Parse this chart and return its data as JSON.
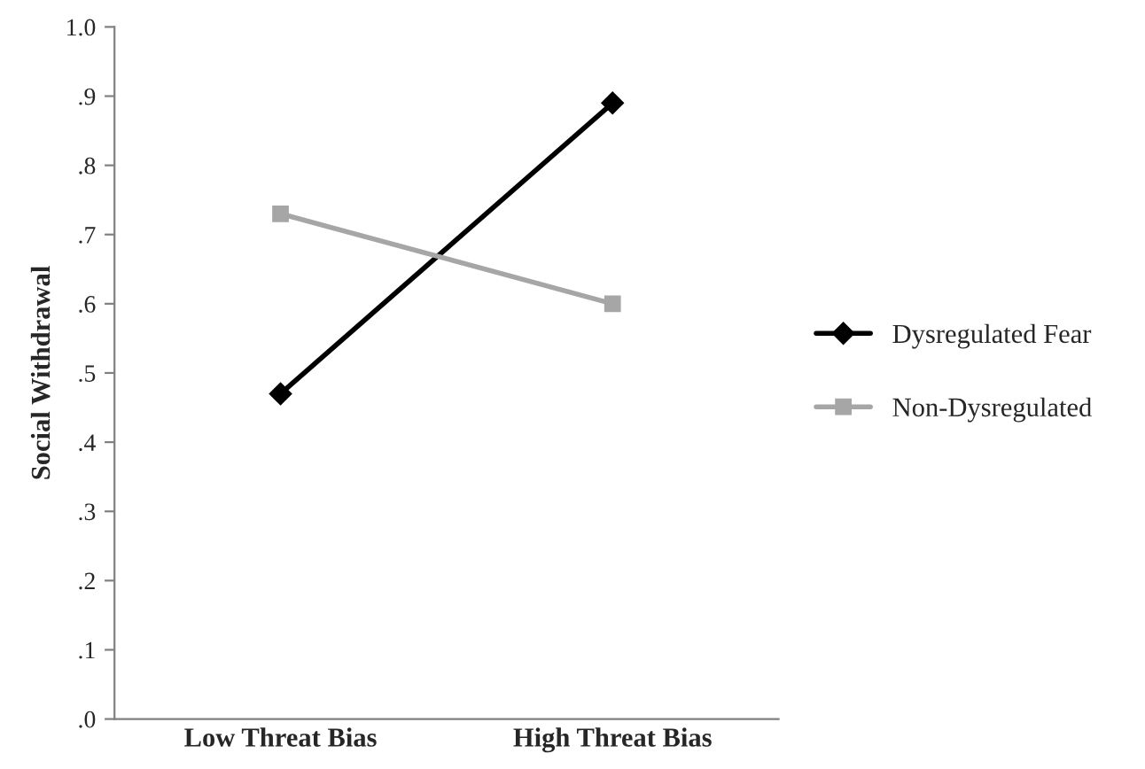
{
  "chart_data": {
    "type": "line",
    "ylabel": "Social Withdrawal",
    "categories": [
      "Low Threat Bias",
      "High Threat Bias"
    ],
    "series": [
      {
        "name": "Dysregulated Fear",
        "color": "#000000",
        "marker": "diamond",
        "values": [
          0.47,
          0.89
        ]
      },
      {
        "name": "Non-Dysregulated",
        "color": "#a6a6a6",
        "marker": "square",
        "values": [
          0.73,
          0.6
        ]
      }
    ],
    "ylim": [
      0,
      1
    ],
    "yticks": [
      {
        "value": 0,
        "label": ".0"
      },
      {
        "value": 0.1,
        "label": ".1"
      },
      {
        "value": 0.2,
        "label": ".2"
      },
      {
        "value": 0.3,
        "label": ".3"
      },
      {
        "value": 0.4,
        "label": ".4"
      },
      {
        "value": 0.5,
        "label": ".5"
      },
      {
        "value": 0.6,
        "label": ".6"
      },
      {
        "value": 0.7,
        "label": ".7"
      },
      {
        "value": 0.8,
        "label": ".8"
      },
      {
        "value": 0.9,
        "label": ".9"
      },
      {
        "value": 1.0,
        "label": "1.0"
      }
    ],
    "legend": "right",
    "grid": false,
    "line_style": "solid"
  }
}
